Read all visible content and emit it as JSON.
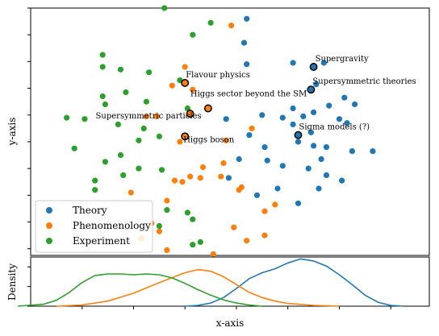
{
  "chart_data": [
    {
      "type": "scatter",
      "xlabel": "",
      "ylabel": "y-axis",
      "xlim": [
        -0.8,
        0.75
      ],
      "ylim": [
        -0.85,
        1.0
      ],
      "legend_position": "bottom-left",
      "grid": false,
      "series": [
        {
          "name": "Theory",
          "color": "#1f77b4",
          "points": [
            [
              0.04,
              0.92
            ],
            [
              0.04,
              0.58
            ],
            [
              0.03,
              0.74
            ],
            [
              0.22,
              0.59
            ],
            [
              0.34,
              0.59
            ],
            [
              0.31,
              0.43
            ],
            [
              0.22,
              0.25
            ],
            [
              0.26,
              0.19
            ],
            [
              0.3,
              0.22
            ],
            [
              0.36,
              0.27
            ],
            [
              0.42,
              0.33
            ],
            [
              0.46,
              0.28
            ],
            [
              0.45,
              -0.07
            ],
            [
              0.53,
              -0.07
            ],
            [
              0.43,
              0.14
            ],
            [
              0.1,
              0.2
            ],
            [
              0.18,
              0.18
            ],
            [
              0.22,
              0.13
            ],
            [
              0.29,
              0.07
            ],
            [
              0.4,
              0.17
            ],
            [
              -0.04,
              0.17
            ],
            [
              0.24,
              0.0
            ],
            [
              0.35,
              -0.04
            ],
            [
              0.11,
              -0.04
            ],
            [
              0.3,
              -0.03
            ],
            [
              0.18,
              -0.18
            ],
            [
              0.28,
              -0.2
            ],
            [
              0.05,
              0.05
            ],
            [
              0.12,
              -0.14
            ],
            [
              0.35,
              -0.25
            ],
            [
              0.41,
              -0.29
            ],
            [
              0.16,
              -0.35
            ],
            [
              0.32,
              -0.35
            ],
            [
              0.33,
              -0.13
            ],
            [
              0.01,
              -0.13
            ],
            [
              -0.03,
              -0.27
            ],
            [
              0.08,
              -0.4
            ],
            [
              0.24,
              -0.46
            ]
          ]
        },
        {
          "name": "Phenomenology",
          "color": "#ff7f0e",
          "points": [
            [
              -0.02,
              0.87
            ],
            [
              -0.2,
              0.56
            ],
            [
              -0.25,
              0.42
            ],
            [
              -0.17,
              0.39
            ],
            [
              -0.35,
              0.19
            ],
            [
              -0.31,
              0.19
            ],
            [
              -0.22,
              0.0
            ],
            [
              -0.04,
              0.01
            ],
            [
              -0.21,
              -0.3
            ],
            [
              -0.18,
              -0.26
            ],
            [
              -0.24,
              -0.29
            ],
            [
              -0.14,
              -0.27
            ],
            [
              -0.06,
              -0.26
            ],
            [
              0.02,
              -0.34
            ],
            [
              0.15,
              -0.47
            ],
            [
              -0.41,
              -0.38
            ],
            [
              -0.27,
              -0.44
            ],
            [
              0.11,
              -0.52
            ],
            [
              -0.3,
              -0.67
            ],
            [
              -0.33,
              -0.61
            ],
            [
              -0.01,
              -0.64
            ],
            [
              0.11,
              -0.7
            ],
            [
              -0.37,
              -0.72
            ],
            [
              -0.27,
              -0.81
            ],
            [
              -0.09,
              -0.84
            ],
            [
              0.04,
              -0.74
            ],
            [
              0.01,
              -0.36
            ],
            [
              0.06,
              0.1
            ],
            [
              -0.05,
              -0.16
            ],
            [
              -0.13,
              -0.19
            ]
          ]
        },
        {
          "name": "Experiment",
          "color": "#2ca02c",
          "points": [
            [
              -0.28,
              1.0
            ],
            [
              -0.1,
              0.89
            ],
            [
              -0.17,
              0.8
            ],
            [
              -0.52,
              0.65
            ],
            [
              -0.45,
              0.54
            ],
            [
              -0.52,
              0.56
            ],
            [
              -0.34,
              0.52
            ],
            [
              -0.22,
              0.46
            ],
            [
              -0.43,
              0.37
            ],
            [
              -0.52,
              0.34
            ],
            [
              -0.35,
              0.3
            ],
            [
              -0.51,
              0.28
            ],
            [
              -0.66,
              0.18
            ],
            [
              -0.59,
              0.17
            ],
            [
              -0.46,
              0.13
            ],
            [
              -0.36,
              0.1
            ],
            [
              -0.3,
              0.04
            ],
            [
              -0.38,
              0.01
            ],
            [
              -0.63,
              -0.05
            ],
            [
              -0.45,
              -0.1
            ],
            [
              -0.51,
              -0.15
            ],
            [
              -0.38,
              -0.2
            ],
            [
              -0.29,
              -0.21
            ],
            [
              -0.55,
              -0.29
            ],
            [
              -0.44,
              -0.25
            ],
            [
              -0.55,
              -0.36
            ],
            [
              -0.27,
              -0.51
            ],
            [
              -0.19,
              -0.53
            ],
            [
              -0.17,
              -0.58
            ],
            [
              -0.3,
              -0.63
            ],
            [
              -0.14,
              -0.75
            ],
            [
              -0.17,
              -0.77
            ],
            [
              -0.19,
              0.25
            ]
          ]
        }
      ],
      "annotations": [
        {
          "label": "Supergravity",
          "x": 0.3,
          "y": 0.56,
          "color": "#1f77b4"
        },
        {
          "label": "Supersymmetric theories",
          "x": 0.29,
          "y": 0.39,
          "color": "#1f77b4"
        },
        {
          "label": "Sigma models (?)",
          "x": 0.24,
          "y": 0.05,
          "color": "#1f77b4"
        },
        {
          "label": "Flavour physics",
          "x": -0.2,
          "y": 0.44,
          "color": "#ff7f0e"
        },
        {
          "label": "Higgs sector beyond the SM",
          "x": -0.11,
          "y": 0.25,
          "color": "#ff7f0e"
        },
        {
          "label": "Supersymmetric particles",
          "x": -0.18,
          "y": 0.21,
          "color": "#ff7f0e"
        },
        {
          "label": "Higgs boson",
          "x": -0.2,
          "y": 0.04,
          "color": "#ff7f0e"
        }
      ]
    },
    {
      "type": "line",
      "xlabel": "x-axis",
      "ylabel": "Density",
      "xlim": [
        -0.8,
        0.75
      ],
      "ylim": [
        0,
        1.25
      ],
      "grid": false,
      "series": [
        {
          "name": "Theory",
          "color": "#1f77b4",
          "points": [
            [
              -0.2,
              0.0
            ],
            [
              -0.15,
              0.02
            ],
            [
              -0.1,
              0.08
            ],
            [
              -0.05,
              0.22
            ],
            [
              0.0,
              0.45
            ],
            [
              0.05,
              0.7
            ],
            [
              0.1,
              0.85
            ],
            [
              0.15,
              0.95
            ],
            [
              0.2,
              1.1
            ],
            [
              0.25,
              1.2
            ],
            [
              0.3,
              1.15
            ],
            [
              0.35,
              1.02
            ],
            [
              0.4,
              0.8
            ],
            [
              0.45,
              0.55
            ],
            [
              0.5,
              0.28
            ],
            [
              0.55,
              0.1
            ],
            [
              0.6,
              0.02
            ],
            [
              0.65,
              0.0
            ]
          ]
        },
        {
          "name": "Phenomenology",
          "color": "#ff7f0e",
          "points": [
            [
              -0.7,
              0.0
            ],
            [
              -0.6,
              0.03
            ],
            [
              -0.5,
              0.13
            ],
            [
              -0.4,
              0.33
            ],
            [
              -0.3,
              0.6
            ],
            [
              -0.2,
              0.85
            ],
            [
              -0.15,
              0.93
            ],
            [
              -0.1,
              0.89
            ],
            [
              -0.05,
              0.75
            ],
            [
              0.0,
              0.55
            ],
            [
              0.05,
              0.35
            ],
            [
              0.1,
              0.22
            ],
            [
              0.15,
              0.13
            ],
            [
              0.2,
              0.07
            ],
            [
              0.3,
              0.02
            ],
            [
              0.4,
              0.0
            ]
          ]
        },
        {
          "name": "Experiment",
          "color": "#2ca02c",
          "points": [
            [
              -0.85,
              0.0
            ],
            [
              -0.75,
              0.05
            ],
            [
              -0.7,
              0.15
            ],
            [
              -0.65,
              0.35
            ],
            [
              -0.6,
              0.6
            ],
            [
              -0.55,
              0.78
            ],
            [
              -0.5,
              0.82
            ],
            [
              -0.45,
              0.82
            ],
            [
              -0.4,
              0.8
            ],
            [
              -0.35,
              0.82
            ],
            [
              -0.3,
              0.8
            ],
            [
              -0.25,
              0.72
            ],
            [
              -0.2,
              0.58
            ],
            [
              -0.15,
              0.42
            ],
            [
              -0.1,
              0.28
            ],
            [
              -0.05,
              0.16
            ],
            [
              0.0,
              0.08
            ],
            [
              0.05,
              0.03
            ],
            [
              0.1,
              0.0
            ]
          ]
        }
      ]
    }
  ]
}
